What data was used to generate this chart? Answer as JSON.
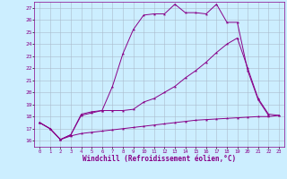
{
  "xlabel": "Windchill (Refroidissement éolien,°C)",
  "bg_color": "#cceeff",
  "line_color": "#880088",
  "grid_color": "#aabbcc",
  "ylim": [
    15.5,
    27.5
  ],
  "xlim": [
    -0.5,
    23.5
  ],
  "yticks": [
    16,
    17,
    18,
    19,
    20,
    21,
    22,
    23,
    24,
    25,
    26,
    27
  ],
  "xticks": [
    0,
    1,
    2,
    3,
    4,
    5,
    6,
    7,
    8,
    9,
    10,
    11,
    12,
    13,
    14,
    15,
    16,
    17,
    18,
    19,
    20,
    21,
    22,
    23
  ],
  "series1_x": [
    0,
    1,
    2,
    3,
    4,
    5,
    6,
    7,
    8,
    9,
    10,
    11,
    12,
    13,
    14,
    15,
    16,
    17,
    18,
    19,
    20,
    21,
    22,
    23
  ],
  "series1_y": [
    17.5,
    17.0,
    16.1,
    16.4,
    16.6,
    16.7,
    16.8,
    16.9,
    17.0,
    17.1,
    17.2,
    17.3,
    17.4,
    17.5,
    17.6,
    17.7,
    17.75,
    17.8,
    17.85,
    17.9,
    17.95,
    18.0,
    18.0,
    18.1
  ],
  "series2_x": [
    0,
    1,
    2,
    3,
    4,
    5,
    6,
    7,
    8,
    9,
    10,
    11,
    12,
    13,
    14,
    15,
    16,
    17,
    18,
    19,
    20,
    21,
    22,
    23
  ],
  "series2_y": [
    17.5,
    17.0,
    16.1,
    16.5,
    18.1,
    18.3,
    18.5,
    18.5,
    18.5,
    18.6,
    19.2,
    19.5,
    20.0,
    20.5,
    21.2,
    21.8,
    22.5,
    23.3,
    24.0,
    24.5,
    22.0,
    19.5,
    18.2,
    18.1
  ],
  "series3_x": [
    0,
    1,
    2,
    3,
    4,
    5,
    6,
    7,
    8,
    9,
    10,
    11,
    12,
    13,
    14,
    15,
    16,
    17,
    18,
    19,
    20,
    21,
    22,
    23
  ],
  "series3_y": [
    17.5,
    17.0,
    16.1,
    16.5,
    18.2,
    18.4,
    18.5,
    20.5,
    23.2,
    25.2,
    26.4,
    26.5,
    26.5,
    27.3,
    26.6,
    26.6,
    26.5,
    27.3,
    25.8,
    25.8,
    21.8,
    19.4,
    18.1,
    null
  ]
}
